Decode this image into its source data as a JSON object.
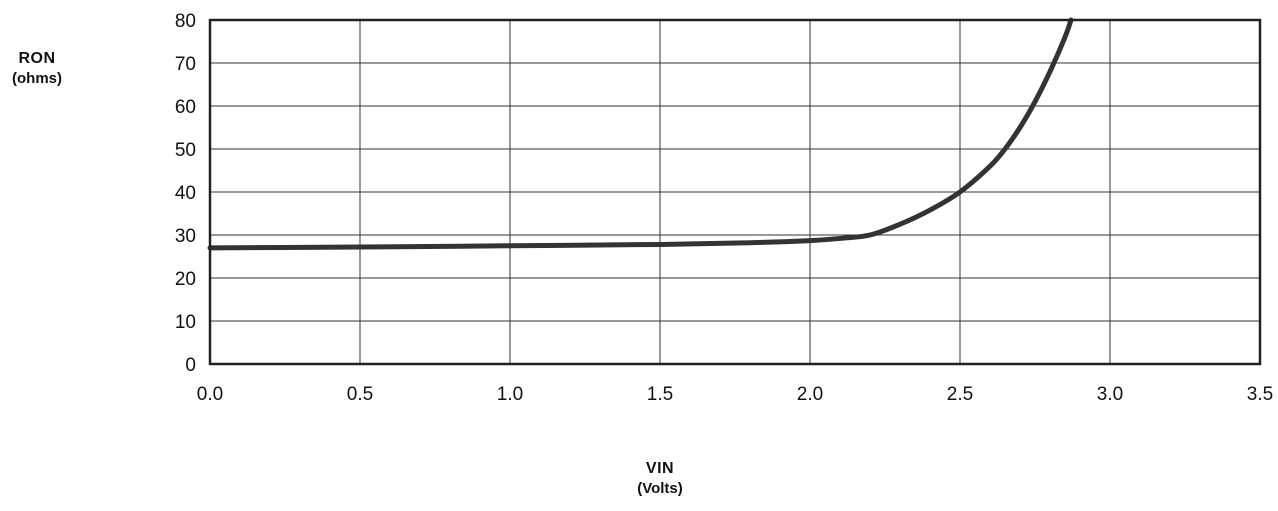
{
  "chart_data": {
    "type": "line",
    "xlabel": "VIN",
    "xunit": "(Volts)",
    "ylabel": "RON",
    "yunit": "(ohms)",
    "xlim": [
      0,
      3.5
    ],
    "ylim": [
      0,
      80
    ],
    "x_ticks": [
      "0.0",
      "0.5",
      "1.0",
      "1.5",
      "2.0",
      "2.5",
      "3.0",
      "3.5"
    ],
    "y_ticks": [
      "0",
      "10",
      "20",
      "30",
      "40",
      "50",
      "60",
      "70",
      "80"
    ],
    "grid": true,
    "series": [
      {
        "color": "#333333",
        "x": [
          0.0,
          0.5,
          1.0,
          1.5,
          1.8,
          2.0,
          2.1,
          2.2,
          2.3,
          2.4,
          2.5,
          2.6,
          2.65,
          2.7,
          2.75,
          2.8,
          2.85,
          2.87
        ],
        "y": [
          27.0,
          27.2,
          27.5,
          27.8,
          28.2,
          28.7,
          29.2,
          30.0,
          32.5,
          35.8,
          40.0,
          46.0,
          50.0,
          55.0,
          61.0,
          68.0,
          76.0,
          80.0
        ]
      }
    ]
  }
}
